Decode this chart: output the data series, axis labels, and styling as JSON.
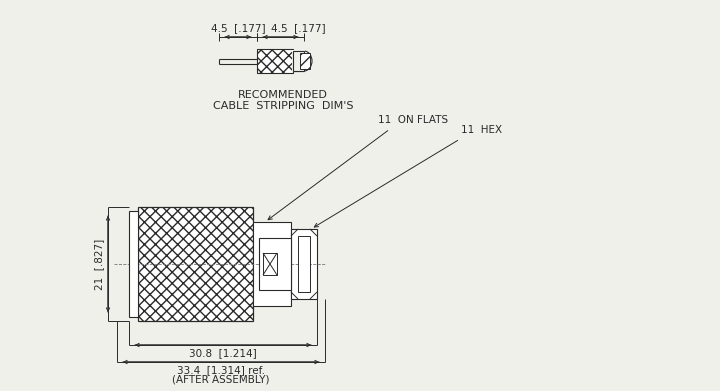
{
  "bg_color": "#f0f0eb",
  "line_color": "#2a2a2a",
  "font_size_dim": 7.5,
  "font_size_label": 7.5,
  "font_family": "DejaVu Sans",
  "top_label_line1": "RECOMMENDED",
  "top_label_line2": "CABLE  STRIPPING  DIM'S",
  "dim_labels": {
    "left_strip": "4.5  [.177]",
    "right_strip": "4.5  [.177]",
    "height_label": "21  [.827]",
    "width_label": "30.8  [1.214]",
    "total_label": "33.4  [1.314] ref.",
    "after_assembly": "(AFTER ASSEMBLY)",
    "on_flats": "11  ON FLATS",
    "hex": "11  HEX"
  }
}
